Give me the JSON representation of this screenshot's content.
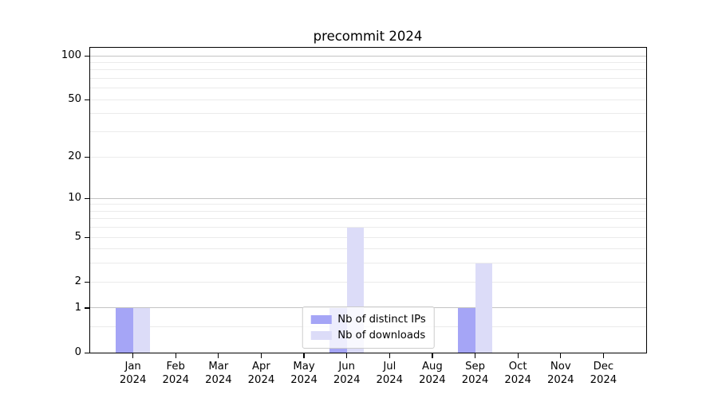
{
  "chart_data": {
    "type": "bar",
    "title": "precommit 2024",
    "year": "2024",
    "categories": [
      "Jan 2024",
      "Feb 2024",
      "Mar 2024",
      "Apr 2024",
      "May 2024",
      "Jun 2024",
      "Jul 2024",
      "Aug 2024",
      "Sep 2024",
      "Oct 2024",
      "Nov 2024",
      "Dec 2024"
    ],
    "months": [
      "Jan",
      "Feb",
      "Mar",
      "Apr",
      "May",
      "Jun",
      "Jul",
      "Aug",
      "Sep",
      "Oct",
      "Nov",
      "Dec"
    ],
    "series": [
      {
        "name": "Nb of distinct IPs",
        "color": "#a5a5f6",
        "values": [
          1,
          0,
          0,
          0,
          0,
          1,
          0,
          0,
          1,
          0,
          0,
          0
        ]
      },
      {
        "name": "Nb of downloads",
        "color": "#dcdcf8",
        "values": [
          1,
          0,
          0,
          0,
          0,
          6,
          0,
          0,
          3,
          0,
          0,
          0
        ]
      }
    ],
    "yscale": "log1p",
    "ylim": [
      0,
      115
    ],
    "yticks": [
      0,
      1,
      2,
      5,
      10,
      20,
      50,
      100
    ],
    "major_gridlines": [
      1,
      10,
      100
    ],
    "minor_gridlines": [
      0.5,
      2,
      3,
      4,
      5,
      6,
      7,
      8,
      9,
      20,
      30,
      40,
      50,
      60,
      70,
      80,
      90
    ],
    "legend_position": "lower center",
    "colors": {
      "axis": "#000000",
      "grid_major": "#c3c3c3",
      "grid_minor": "#ebebeb",
      "text": "#000000"
    }
  }
}
